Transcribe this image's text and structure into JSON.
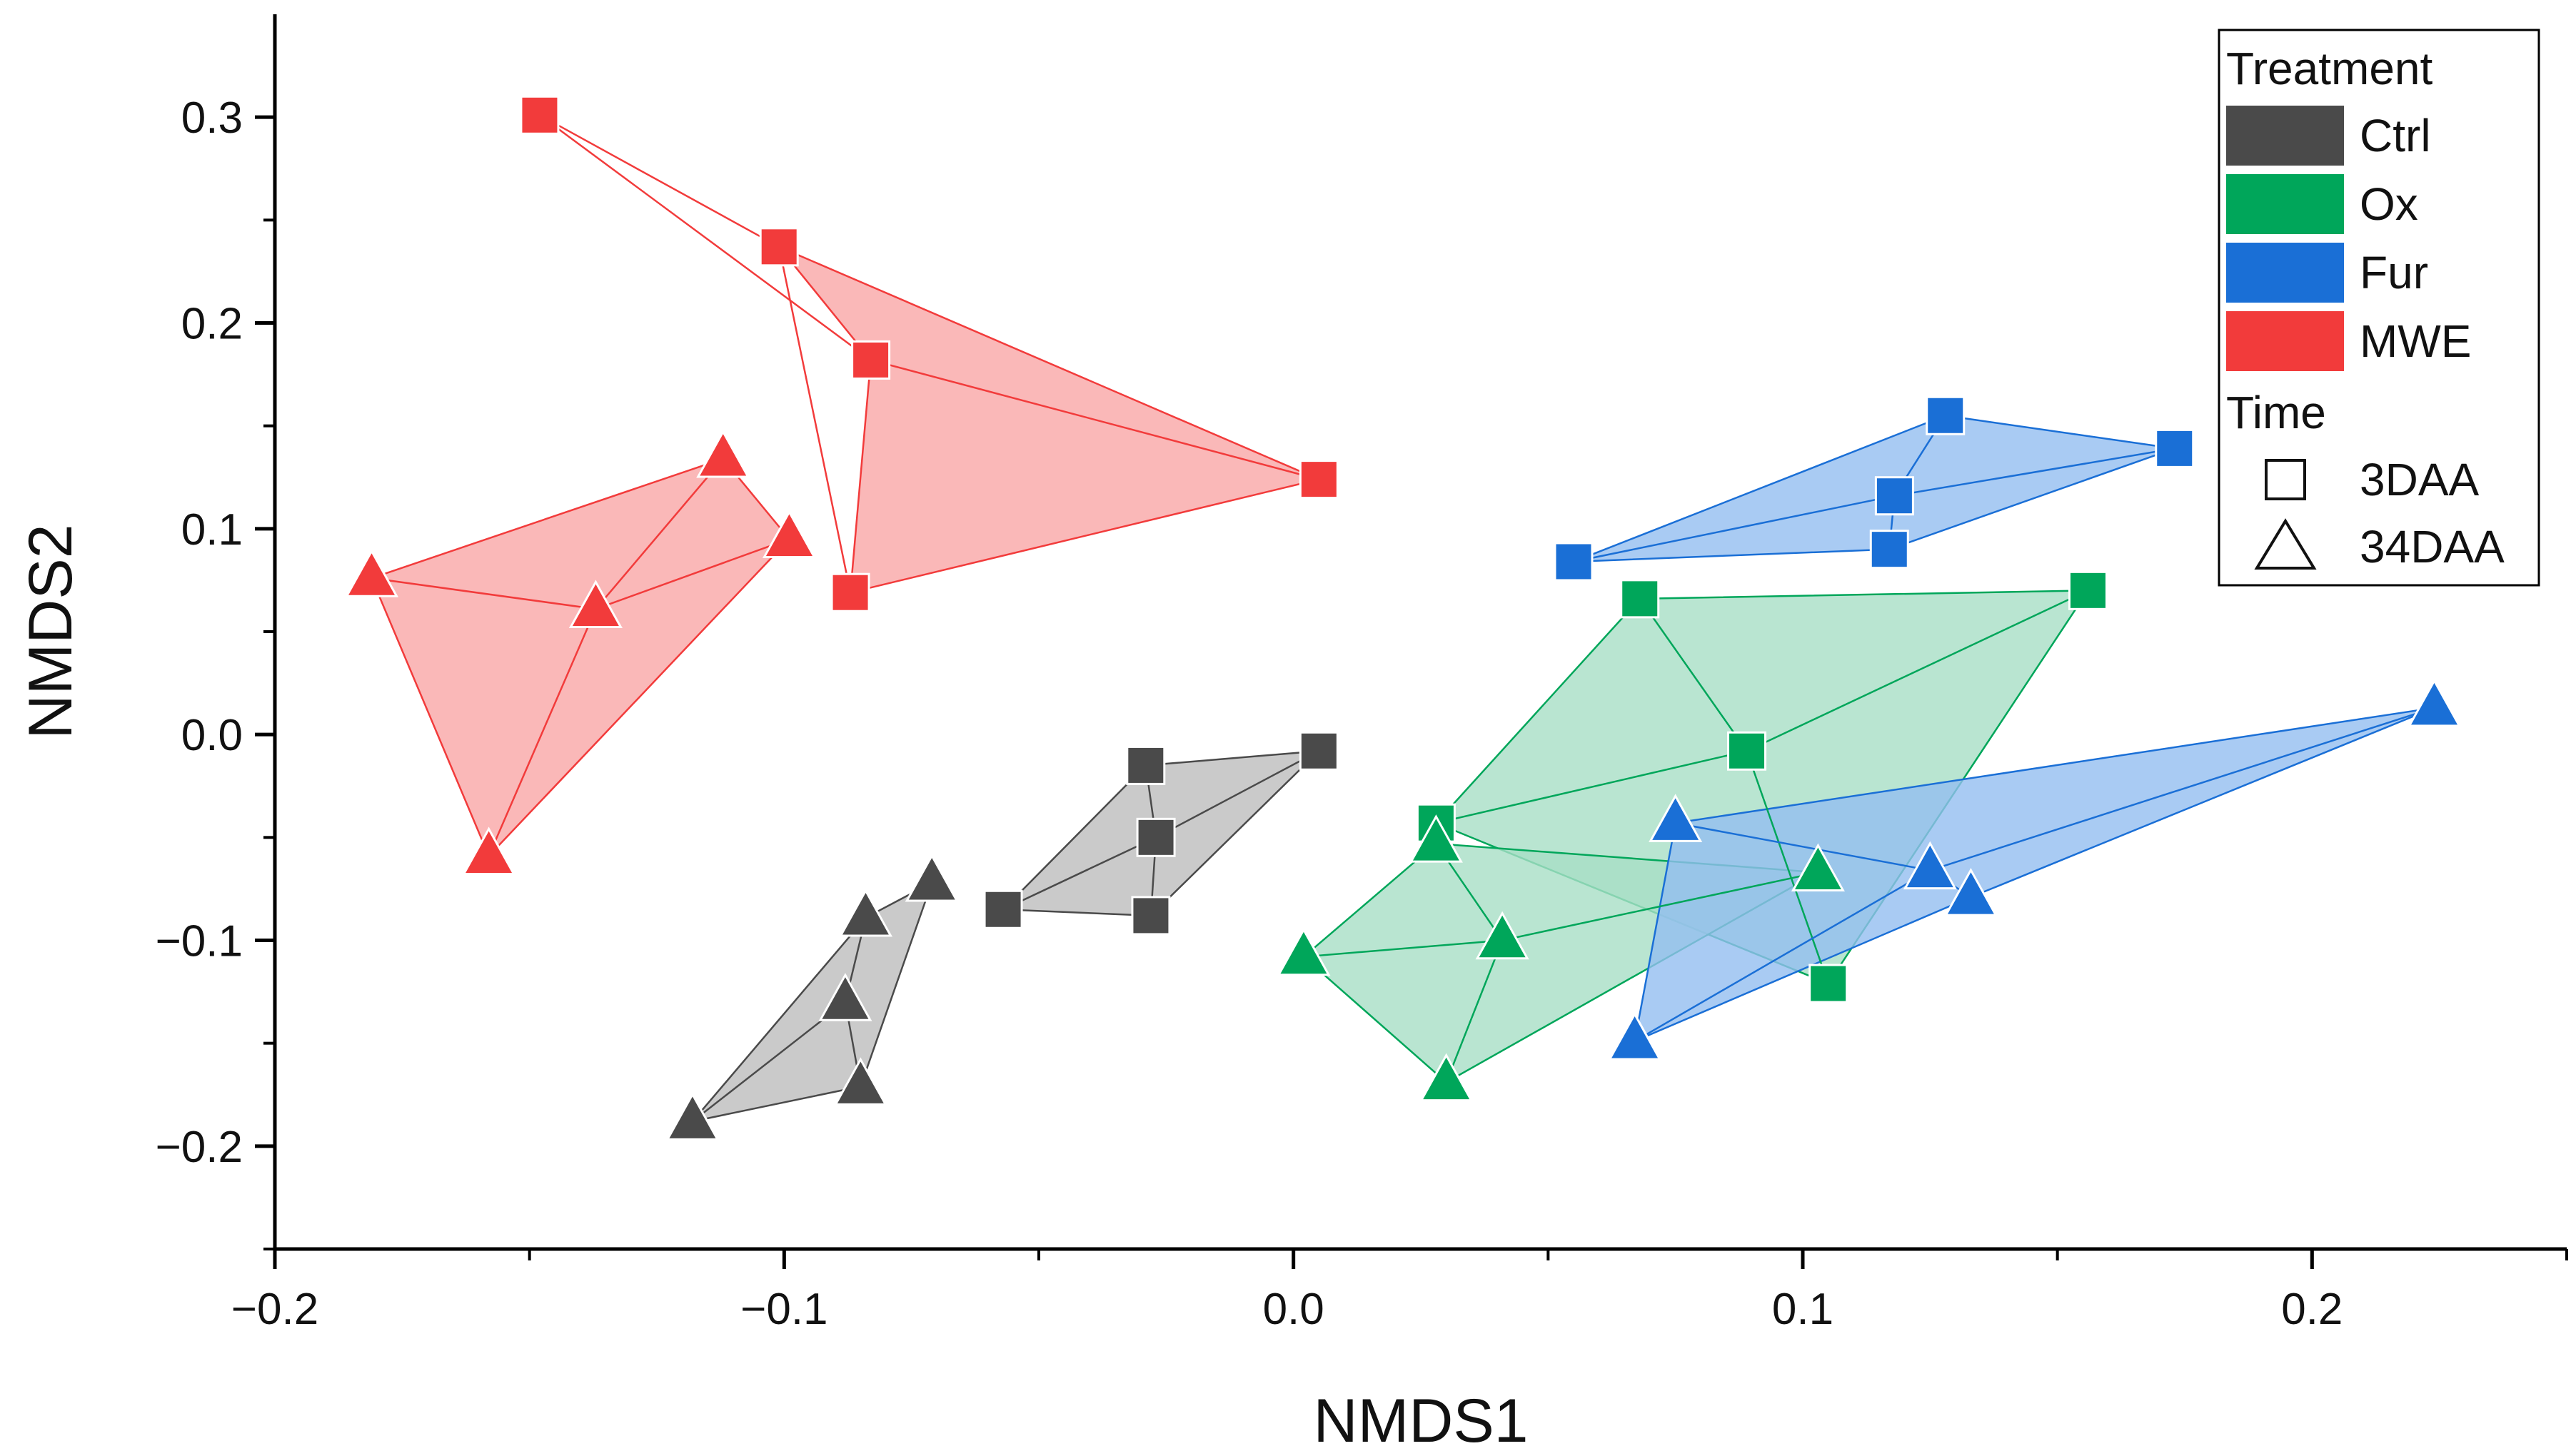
{
  "chart_data": {
    "type": "scatter",
    "xlabel": "NMDS1",
    "ylabel": "NMDS2",
    "xlim": [
      -0.2,
      0.25
    ],
    "ylim": [
      -0.25,
      0.35
    ],
    "x_ticks": [
      {
        "value": -0.2,
        "label": "−0.2"
      },
      {
        "value": -0.1,
        "label": "−0.1"
      },
      {
        "value": 0.0,
        "label": "0.0"
      },
      {
        "value": 0.1,
        "label": "0.1"
      },
      {
        "value": 0.2,
        "label": "0.2"
      }
    ],
    "y_ticks": [
      {
        "value": -0.2,
        "label": "−0.2"
      },
      {
        "value": -0.1,
        "label": "−0.1"
      },
      {
        "value": 0.0,
        "label": "0.0"
      },
      {
        "value": 0.1,
        "label": "0.1"
      },
      {
        "value": 0.2,
        "label": "0.2"
      },
      {
        "value": 0.3,
        "label": "0.3"
      }
    ],
    "x_minor_ticks": [
      -0.15,
      -0.05,
      0.05,
      0.15,
      0.25
    ],
    "y_minor_ticks": [
      -0.25,
      -0.15,
      -0.05,
      0.05,
      0.15,
      0.25
    ],
    "grid": false,
    "legend": {
      "placement": "top-right",
      "treatment_title": "Treatment",
      "time_title": "Time",
      "treatments": [
        {
          "name": "Ctrl",
          "color": "#4a4a4a"
        },
        {
          "name": "Ox",
          "color": "#00a65a"
        },
        {
          "name": "Fur",
          "color": "#1a6fd6"
        },
        {
          "name": "MWE",
          "color": "#f23b3b"
        }
      ],
      "times": [
        {
          "name": "3DAA",
          "marker": "square"
        },
        {
          "name": "34DAA",
          "marker": "triangle"
        }
      ]
    },
    "groups": [
      {
        "treatment": "MWE",
        "time": "3DAA",
        "color": "#f23b3b",
        "fill": "#f9a6a6",
        "marker": "square",
        "points": [
          [
            -0.148,
            0.301
          ],
          [
            -0.101,
            0.237
          ],
          [
            -0.083,
            0.182
          ],
          [
            0.005,
            0.124
          ],
          [
            -0.087,
            0.069
          ]
        ],
        "hull": [
          0,
          1,
          3,
          4,
          2,
          1
        ],
        "spokes": [
          [
            0,
            2
          ],
          [
            2,
            3
          ],
          [
            1,
            4
          ]
        ]
      },
      {
        "treatment": "MWE",
        "time": "34DAA",
        "color": "#f23b3b",
        "fill": "#f9a6a6",
        "marker": "triangle",
        "points": [
          [
            -0.181,
            0.076
          ],
          [
            -0.112,
            0.134
          ],
          [
            -0.099,
            0.095
          ],
          [
            -0.137,
            0.061
          ],
          [
            -0.158,
            -0.059
          ]
        ],
        "hull": [
          0,
          1,
          2,
          4
        ],
        "spokes": [
          [
            0,
            3
          ],
          [
            3,
            2
          ],
          [
            3,
            1
          ],
          [
            3,
            4
          ]
        ]
      },
      {
        "treatment": "Ctrl",
        "time": "3DAA",
        "color": "#4a4a4a",
        "fill": "#bdbdbd",
        "marker": "square",
        "points": [
          [
            -0.057,
            -0.085
          ],
          [
            -0.029,
            -0.015
          ],
          [
            0.005,
            -0.008
          ],
          [
            -0.027,
            -0.05
          ],
          [
            -0.028,
            -0.088
          ]
        ],
        "hull": [
          0,
          1,
          2,
          4
        ],
        "spokes": [
          [
            0,
            3
          ],
          [
            3,
            2
          ],
          [
            1,
            3
          ],
          [
            3,
            4
          ]
        ]
      },
      {
        "treatment": "Ctrl",
        "time": "34DAA",
        "color": "#4a4a4a",
        "fill": "#bdbdbd",
        "marker": "triangle",
        "points": [
          [
            -0.118,
            -0.188
          ],
          [
            -0.084,
            -0.089
          ],
          [
            -0.071,
            -0.072
          ],
          [
            -0.088,
            -0.13
          ],
          [
            -0.085,
            -0.171
          ]
        ],
        "hull": [
          0,
          1,
          2,
          4
        ],
        "spokes": [
          [
            0,
            3
          ],
          [
            3,
            1
          ],
          [
            3,
            4
          ]
        ]
      },
      {
        "treatment": "Ox",
        "time": "3DAA",
        "color": "#00a65a",
        "fill": "#a8dfc5",
        "marker": "square",
        "points": [
          [
            0.028,
            -0.043
          ],
          [
            0.068,
            0.066
          ],
          [
            0.156,
            0.07
          ],
          [
            0.089,
            -0.008
          ],
          [
            0.105,
            -0.121
          ]
        ],
        "hull": [
          0,
          1,
          2,
          4
        ],
        "spokes": [
          [
            0,
            3
          ],
          [
            3,
            2
          ],
          [
            1,
            3
          ],
          [
            3,
            4
          ]
        ]
      },
      {
        "treatment": "Ox",
        "time": "34DAA",
        "color": "#00a65a",
        "fill": "#a8dfc5",
        "marker": "triangle",
        "points": [
          [
            0.002,
            -0.108
          ],
          [
            0.028,
            -0.053
          ],
          [
            0.103,
            -0.067
          ],
          [
            0.041,
            -0.1
          ],
          [
            0.03,
            -0.169
          ]
        ],
        "hull": [
          0,
          1,
          2,
          4
        ],
        "spokes": [
          [
            0,
            3
          ],
          [
            3,
            2
          ],
          [
            1,
            3
          ],
          [
            3,
            4
          ]
        ]
      },
      {
        "treatment": "Fur",
        "time": "3DAA",
        "color": "#1a6fd6",
        "fill": "#93bef0",
        "marker": "square",
        "points": [
          [
            0.055,
            0.084
          ],
          [
            0.128,
            0.155
          ],
          [
            0.173,
            0.139
          ],
          [
            0.118,
            0.116
          ],
          [
            0.117,
            0.09
          ]
        ],
        "hull": [
          0,
          1,
          2,
          4
        ],
        "spokes": [
          [
            0,
            3
          ],
          [
            3,
            2
          ],
          [
            1,
            3
          ],
          [
            3,
            4
          ]
        ]
      },
      {
        "treatment": "Fur",
        "time": "34DAA",
        "color": "#1a6fd6",
        "fill": "#93bef0",
        "marker": "triangle",
        "points": [
          [
            0.067,
            -0.149
          ],
          [
            0.075,
            -0.043
          ],
          [
            0.224,
            0.013
          ],
          [
            0.125,
            -0.066
          ],
          [
            0.133,
            -0.079
          ]
        ],
        "hull": [
          0,
          1,
          2,
          4
        ],
        "spokes": [
          [
            1,
            3
          ],
          [
            3,
            2
          ],
          [
            0,
            3
          ],
          [
            3,
            4
          ]
        ]
      }
    ]
  }
}
